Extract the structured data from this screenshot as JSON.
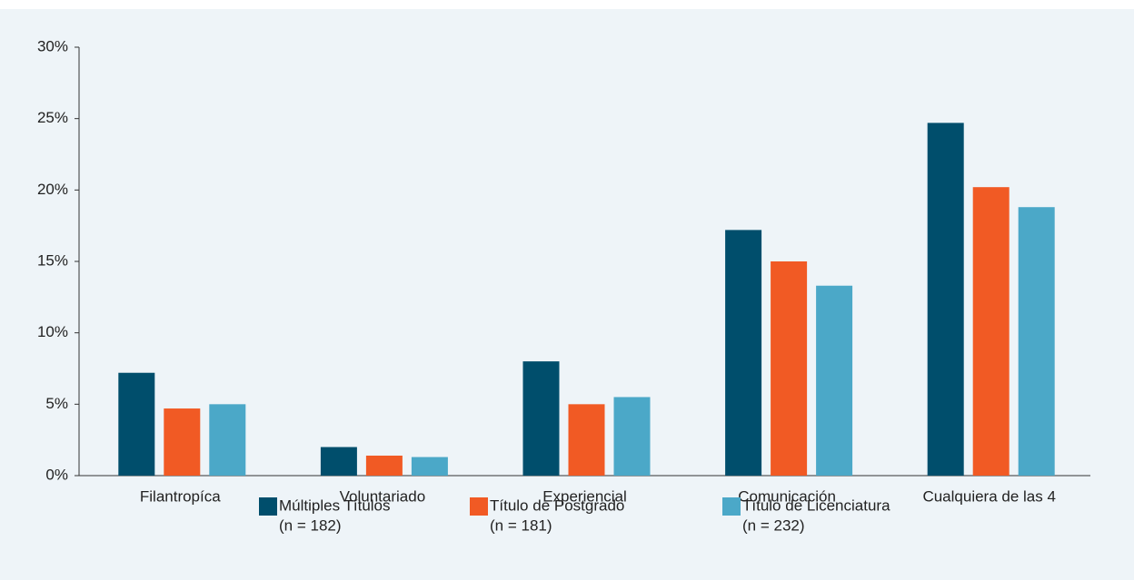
{
  "chart_data": {
    "type": "bar",
    "categories": [
      "Filantropíca",
      "Voluntariado",
      "Experiencial",
      "Comunicación",
      "Cualquiera de las 4"
    ],
    "series": [
      {
        "name": "Múltiples Títulos",
        "sample": "(n = 182)",
        "color": "#004e6c",
        "values": [
          7.2,
          2.0,
          8.0,
          17.2,
          24.7
        ]
      },
      {
        "name": "Título de Postgrado",
        "sample": "(n = 181)",
        "color": "#f15a24",
        "values": [
          4.7,
          1.4,
          5.0,
          15.0,
          20.2
        ]
      },
      {
        "name": "Título de Licenciatura",
        "sample": "(n = 232)",
        "color": "#4ba8c8",
        "values": [
          5.0,
          1.3,
          5.5,
          13.3,
          18.8
        ]
      }
    ],
    "ylim": [
      0,
      30
    ],
    "yticks": [
      {
        "value": 0,
        "label": "0%"
      },
      {
        "value": 5,
        "label": "5%"
      },
      {
        "value": 10,
        "label": "10%"
      },
      {
        "value": 15,
        "label": "15%"
      },
      {
        "value": 20,
        "label": "20%"
      },
      {
        "value": 25,
        "label": "25%"
      },
      {
        "value": 30,
        "label": "30%"
      }
    ],
    "legend": "bottom"
  }
}
